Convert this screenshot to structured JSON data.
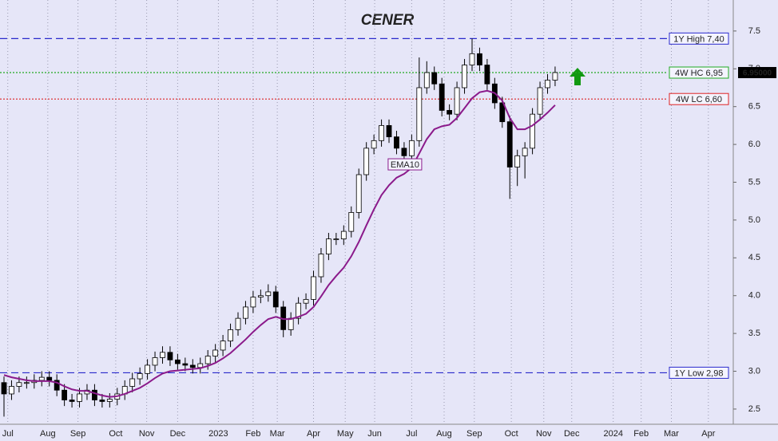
{
  "chart_data": {
    "type": "candlestick",
    "title": "CENER",
    "title_color": "#118811",
    "candles": {
      "open": [
        2.85,
        2.7,
        2.8,
        2.85,
        2.85,
        2.88,
        2.92,
        2.88,
        2.75,
        2.62,
        2.6,
        2.7,
        2.75,
        2.62,
        2.6,
        2.63,
        2.7,
        2.8,
        2.9,
        2.97,
        3.08,
        3.18,
        3.25,
        3.15,
        3.1,
        3.08,
        3.05,
        3.1,
        3.2,
        3.28,
        3.4,
        3.55,
        3.7,
        3.85,
        3.98,
        4.0,
        4.05,
        3.85,
        3.55,
        3.7,
        3.9,
        3.95,
        4.25,
        4.55,
        4.75,
        4.75,
        4.85,
        5.1,
        5.6,
        5.95,
        6.05,
        6.25,
        6.1,
        5.95,
        5.85,
        6.05,
        6.75,
        6.95,
        6.8,
        6.45,
        6.4,
        6.75,
        7.05,
        7.2,
        7.05,
        6.8,
        6.55,
        6.3,
        5.7,
        5.85,
        5.95,
        6.4,
        6.75,
        6.85
      ],
      "high": [
        2.93,
        2.88,
        2.93,
        2.93,
        2.96,
        3.0,
        3.0,
        2.96,
        2.83,
        2.7,
        2.78,
        2.83,
        2.83,
        2.7,
        2.71,
        2.78,
        2.88,
        2.98,
        3.05,
        3.16,
        3.26,
        3.33,
        3.33,
        3.23,
        3.18,
        3.16,
        3.18,
        3.28,
        3.36,
        3.48,
        3.63,
        3.78,
        3.93,
        4.06,
        4.08,
        4.15,
        4.13,
        3.93,
        3.78,
        3.98,
        4.03,
        4.33,
        4.63,
        4.83,
        4.83,
        4.93,
        5.18,
        5.68,
        6.03,
        6.13,
        6.33,
        6.33,
        6.18,
        6.03,
        6.13,
        7.15,
        7.1,
        7.03,
        6.88,
        6.53,
        6.83,
        7.13,
        7.4,
        7.28,
        7.13,
        6.88,
        6.63,
        6.38,
        5.93,
        6.03,
        6.48,
        6.83,
        6.93,
        7.03
      ],
      "low": [
        2.4,
        2.62,
        2.72,
        2.77,
        2.77,
        2.8,
        2.8,
        2.67,
        2.54,
        2.52,
        2.52,
        2.62,
        2.54,
        2.52,
        2.52,
        2.55,
        2.62,
        2.72,
        2.82,
        2.89,
        3.0,
        3.1,
        3.07,
        3.02,
        3.0,
        2.97,
        2.97,
        3.02,
        3.12,
        3.2,
        3.32,
        3.47,
        3.62,
        3.77,
        3.9,
        3.92,
        3.77,
        3.45,
        3.47,
        3.62,
        3.82,
        3.87,
        4.17,
        4.47,
        4.67,
        4.67,
        4.77,
        5.02,
        5.52,
        5.87,
        5.97,
        6.02,
        5.87,
        5.77,
        5.77,
        5.97,
        6.67,
        6.72,
        6.37,
        6.32,
        6.32,
        6.67,
        6.97,
        6.97,
        6.72,
        6.47,
        6.22,
        5.28,
        5.45,
        5.55,
        5.87,
        6.32,
        6.67,
        6.77
      ],
      "close": [
        2.7,
        2.8,
        2.85,
        2.85,
        2.88,
        2.92,
        2.88,
        2.75,
        2.62,
        2.6,
        2.7,
        2.75,
        2.62,
        2.6,
        2.63,
        2.7,
        2.8,
        2.9,
        2.97,
        3.08,
        3.18,
        3.25,
        3.15,
        3.1,
        3.08,
        3.05,
        3.1,
        3.2,
        3.28,
        3.4,
        3.55,
        3.7,
        3.85,
        3.98,
        4.0,
        4.05,
        3.85,
        3.55,
        3.7,
        3.9,
        3.95,
        4.25,
        4.55,
        4.75,
        4.75,
        4.85,
        5.1,
        5.6,
        5.95,
        6.05,
        6.25,
        6.1,
        5.95,
        5.85,
        6.05,
        6.75,
        6.95,
        6.8,
        6.45,
        6.4,
        6.75,
        7.05,
        7.2,
        7.05,
        6.8,
        6.55,
        6.3,
        5.7,
        5.85,
        5.95,
        6.4,
        6.75,
        6.85,
        6.95
      ]
    },
    "series": [
      {
        "name": "EMA10",
        "color": "#8b1a8b",
        "values": [
          2.95,
          2.92,
          2.9,
          2.88,
          2.87,
          2.87,
          2.87,
          2.85,
          2.8,
          2.76,
          2.74,
          2.74,
          2.71,
          2.68,
          2.66,
          2.67,
          2.7,
          2.74,
          2.78,
          2.84,
          2.91,
          2.97,
          3.0,
          3.01,
          3.02,
          3.03,
          3.04,
          3.07,
          3.11,
          3.17,
          3.24,
          3.33,
          3.42,
          3.52,
          3.61,
          3.69,
          3.72,
          3.69,
          3.69,
          3.72,
          3.76,
          3.85,
          3.99,
          4.14,
          4.26,
          4.37,
          4.52,
          4.71,
          4.93,
          5.14,
          5.33,
          5.46,
          5.56,
          5.61,
          5.69,
          5.88,
          6.07,
          6.2,
          6.24,
          6.26,
          6.35,
          6.48,
          6.61,
          6.69,
          6.71,
          6.68,
          6.58,
          6.35,
          6.2,
          6.2,
          6.25,
          6.33,
          6.42,
          6.52
        ]
      }
    ],
    "ylim": [
      2.32,
      7.91
    ],
    "yticks": [
      2.5,
      {
        "value": 3,
        "label": "3.0"
      },
      3.5,
      {
        "value": 4,
        "label": "4.0"
      },
      4.5,
      {
        "value": 5,
        "label": "5.0"
      },
      5.5,
      {
        "value": 6,
        "label": "6.0"
      },
      6.5,
      {
        "value": 7,
        "label": "7.0"
      },
      7.5
    ],
    "xlim": [
      -0.53,
      96.6
    ],
    "xticks": [
      {
        "value": 0.5,
        "label": "Jul"
      },
      {
        "value": 5.8,
        "label": "Aug"
      },
      {
        "value": 9.8,
        "label": "Sep"
      },
      {
        "value": 14.8,
        "label": "Oct"
      },
      {
        "value": 18.9,
        "label": "Nov"
      },
      {
        "value": 23,
        "label": "Dec"
      },
      {
        "value": 28.4,
        "label": "2023"
      },
      {
        "value": 33,
        "label": "Feb"
      },
      {
        "value": 36.2,
        "label": "Mar"
      },
      {
        "value": 41,
        "label": "Apr"
      },
      {
        "value": 45.2,
        "label": "May"
      },
      {
        "value": 49.1,
        "label": "Jun"
      },
      {
        "value": 54,
        "label": "Jul"
      },
      {
        "value": 58.3,
        "label": "Aug"
      },
      {
        "value": 62.3,
        "label": "Sep"
      },
      {
        "value": 67.2,
        "label": "Oct"
      },
      {
        "value": 71.5,
        "label": "Nov"
      },
      {
        "value": 75.2,
        "label": "Dec"
      },
      {
        "value": 80.7,
        "label": "2024"
      },
      {
        "value": 84.4,
        "label": "Feb"
      },
      {
        "value": 88.4,
        "label": "Mar"
      },
      {
        "value": 93.3,
        "label": "Apr"
      }
    ],
    "reference_lines": [
      {
        "value": 7.4,
        "label": "1Y High 7,40",
        "color": "#2a2acc",
        "style": "dashed"
      },
      {
        "value": 6.95,
        "label": "4W HC 6,95",
        "color": "#22aa22",
        "style": "dotted"
      },
      {
        "value": 6.6,
        "label": "4W LC 6,60",
        "color": "#dd2222",
        "style": "dotted"
      },
      {
        "value": 2.98,
        "label": "1Y Low 2,98",
        "color": "#2a2acc",
        "style": "dashed"
      }
    ],
    "last_price": {
      "value": 6.95,
      "label": "6.95000"
    },
    "series_label_at": 53,
    "up_color": "#ffffff",
    "down_color": "#000000",
    "background": "#e6e6f8",
    "grid": true
  }
}
